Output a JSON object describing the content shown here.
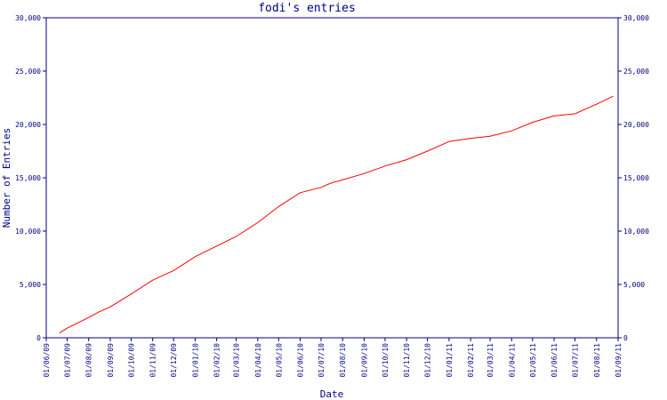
{
  "chart_data": {
    "type": "line",
    "title": "fodi's entries",
    "xlabel": "Date",
    "ylabel": "Number of Entries",
    "ylim": [
      0,
      30000
    ],
    "y_ticks": [
      0,
      5000,
      10000,
      15000,
      20000,
      25000,
      30000
    ],
    "y_tick_labels": [
      "0",
      "5,000",
      "10,000",
      "15,000",
      "20,000",
      "25,000",
      "30,000"
    ],
    "x_tick_labels": [
      "01/06/09",
      "01/07/09",
      "01/08/09",
      "01/09/09",
      "01/10/09",
      "01/11/09",
      "01/12/09",
      "01/01/10",
      "01/02/10",
      "01/03/10",
      "01/04/10",
      "01/05/10",
      "01/06/10",
      "01/07/10",
      "01/08/10",
      "01/09/10",
      "01/10/10",
      "01/11/10",
      "01/12/10",
      "01/01/11",
      "01/02/11",
      "01/03/11",
      "01/04/11",
      "01/05/11",
      "01/06/11",
      "01/07/11",
      "01/08/11",
      "01/09/11"
    ],
    "grid": false,
    "legend": "none",
    "series_color": "#ff0000",
    "axis_color": "#000080",
    "series": [
      {
        "x": [
          "2009-06-20",
          "2009-07-01",
          "2009-08-01",
          "2009-08-15",
          "2009-09-01",
          "2009-10-01",
          "2009-11-01",
          "2009-12-01",
          "2010-01-01",
          "2010-02-01",
          "2010-03-01",
          "2010-04-01",
          "2010-05-01",
          "2010-06-01",
          "2010-07-01",
          "2010-07-15",
          "2010-08-01",
          "2010-09-01",
          "2010-10-01",
          "2010-11-01",
          "2010-12-01",
          "2011-01-01",
          "2011-02-01",
          "2011-03-01",
          "2011-04-01",
          "2011-05-01",
          "2011-06-01",
          "2011-07-01",
          "2011-08-01",
          "2011-08-25"
        ],
        "values": [
          450,
          900,
          1900,
          2400,
          2900,
          4100,
          5400,
          6300,
          7600,
          8600,
          9500,
          10800,
          12300,
          13600,
          14100,
          14500,
          14800,
          15400,
          16100,
          16700,
          17500,
          18400,
          18700,
          18900,
          19400,
          20200,
          20800,
          21000,
          21900,
          22650
        ]
      }
    ]
  }
}
